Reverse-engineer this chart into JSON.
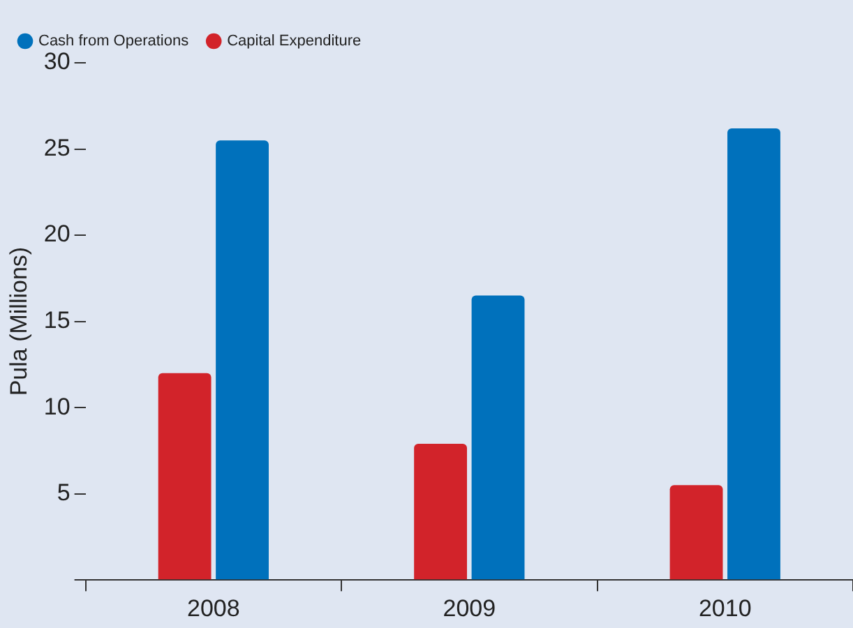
{
  "chart_data": {
    "type": "bar",
    "ylabel": "Pula (Millions)",
    "categories": [
      "2008",
      "2009",
      "2010"
    ],
    "series": [
      {
        "name": "Capital Expenditure",
        "color": "#d2232a",
        "values": [
          12.0,
          7.9,
          5.5
        ]
      },
      {
        "name": "Cash from Operations",
        "color": "#0071bc",
        "values": [
          25.5,
          16.5,
          26.2
        ]
      }
    ],
    "ylim": [
      0,
      30
    ],
    "yticks": [
      {
        "value": 0,
        "label": null
      },
      5,
      10,
      15,
      20,
      25,
      30
    ],
    "grid": false,
    "legend": "top left"
  }
}
